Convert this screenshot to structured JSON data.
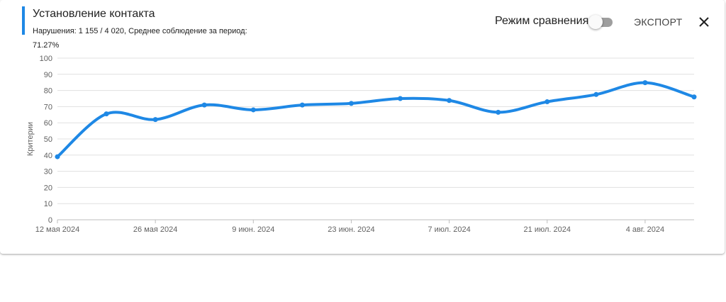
{
  "header": {
    "title": "Установление контакта",
    "subtitle": "Нарушения: 1 155 / 4 020, Среднее соблюдение за период: 71.27%",
    "compare_label": "Режим сравнения",
    "compare_enabled": false,
    "export_label": "ЭКСПОРТ",
    "close_icon": "close-icon"
  },
  "colors": {
    "line": "#1e88e5",
    "accent": "#1e88e5",
    "grid": "#e0e0e0",
    "axis": "#bdbdbd",
    "tick_text": "#616161"
  },
  "chart_data": {
    "type": "line",
    "title": "",
    "xlabel": "",
    "ylabel": "Критерии",
    "ylim": [
      0,
      100
    ],
    "yticks": [
      0,
      10,
      20,
      30,
      40,
      50,
      60,
      70,
      80,
      90,
      100
    ],
    "xlim": [
      "2024-05-12",
      "2024-08-11"
    ],
    "x_tick_labels": [
      {
        "date": "2024-05-12",
        "label": "12 мая 2024"
      },
      {
        "date": "2024-05-26",
        "label": "26 мая 2024"
      },
      {
        "date": "2024-06-09",
        "label": "9 июн. 2024"
      },
      {
        "date": "2024-06-23",
        "label": "23 июн. 2024"
      },
      {
        "date": "2024-07-07",
        "label": "7 июл. 2024"
      },
      {
        "date": "2024-07-21",
        "label": "21 июл. 2024"
      },
      {
        "date": "2024-08-04",
        "label": "4 авг. 2024"
      }
    ],
    "grid": true,
    "legend": "none",
    "series": [
      {
        "x": [
          "2024-05-12",
          "2024-05-19",
          "2024-05-26",
          "2024-06-02",
          "2024-06-09",
          "2024-06-16",
          "2024-06-23",
          "2024-06-30",
          "2024-07-07",
          "2024-07-14",
          "2024-07-21",
          "2024-07-28",
          "2024-08-04",
          "2024-08-11"
        ],
        "values": [
          39,
          65.5,
          62,
          71,
          68,
          71,
          72,
          75,
          73.8,
          66.5,
          73,
          77.5,
          84.8,
          76
        ]
      }
    ]
  }
}
